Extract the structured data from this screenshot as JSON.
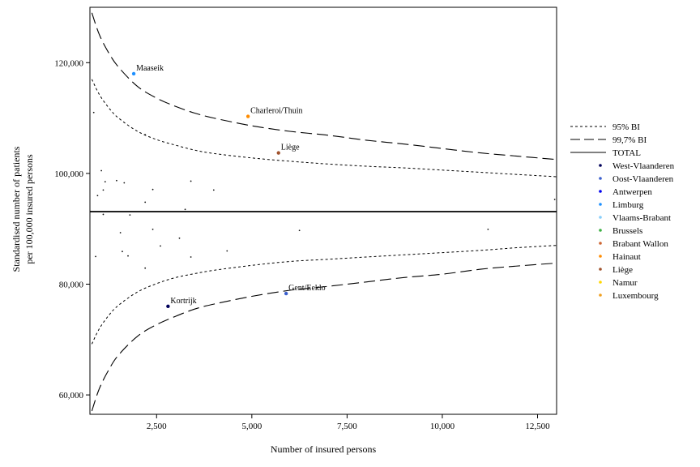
{
  "chart_data": {
    "type": "scatter",
    "xlabel": "Number of insured persons",
    "ylabel_lines": [
      "Standardised number of patients",
      "per 100,000 insured persons"
    ],
    "xlim": [
      750,
      13000
    ],
    "ylim": [
      56500,
      130000
    ],
    "xticks": [
      2500,
      5000,
      7500,
      10000,
      12500
    ],
    "xtick_labels": [
      "2,500",
      "5,000",
      "7,500",
      "10,000",
      "12,500"
    ],
    "yticks": [
      60000,
      80000,
      100000,
      120000
    ],
    "ytick_labels": [
      "60,000",
      "80,000",
      "100,000",
      "120,000"
    ],
    "total": 93100,
    "limits": {
      "x": [
        800,
        1000,
        1250,
        1500,
        2000,
        2500,
        3000,
        3500,
        4000,
        5000,
        6000,
        7000,
        8000,
        9000,
        10000,
        11000,
        12000,
        13000
      ],
      "upper_95": [
        117000,
        114200,
        111800,
        110000,
        107600,
        106100,
        105100,
        104200,
        103600,
        102800,
        102200,
        101700,
        101300,
        101000,
        100600,
        100200,
        99800,
        99400
      ],
      "lower_95": [
        69200,
        72000,
        74400,
        76200,
        78600,
        80100,
        81200,
        81900,
        82500,
        83400,
        84100,
        84500,
        84900,
        85300,
        85700,
        86100,
        86600,
        87000
      ],
      "upper_997": [
        129000,
        125000,
        121700,
        119200,
        115700,
        113600,
        112100,
        110900,
        110000,
        108600,
        107600,
        106900,
        106000,
        105300,
        104500,
        103700,
        103100,
        102500
      ],
      "lower_997": [
        57100,
        61200,
        64600,
        67200,
        70600,
        72700,
        74200,
        75500,
        76400,
        77800,
        78900,
        79600,
        80400,
        81200,
        81800,
        82700,
        83300,
        83800
      ]
    },
    "legend_lines": [
      {
        "label": "95% BI",
        "style": "dotted"
      },
      {
        "label": "99,7% BI",
        "style": "dashed"
      },
      {
        "label": "TOTAL",
        "style": "solid"
      }
    ],
    "legend_placement": "right",
    "provinces": [
      {
        "label": "West-Vlaanderen",
        "color": "#00005a"
      },
      {
        "label": "Oost-Vlaanderen",
        "color": "#3a5fcd"
      },
      {
        "label": "Antwerpen",
        "color": "#0000ee"
      },
      {
        "label": "Limburg",
        "color": "#1e90ff"
      },
      {
        "label": "Vlaams-Brabant",
        "color": "#87cefa"
      },
      {
        "label": "Brussels",
        "color": "#3cb043"
      },
      {
        "label": "Brabant Wallon",
        "color": "#cd6532"
      },
      {
        "label": "Hainaut",
        "color": "#ff8c00"
      },
      {
        "label": "Liège",
        "color": "#a0522d"
      },
      {
        "label": "Namur",
        "color": "#ffd700"
      },
      {
        "label": "Luxembourg",
        "color": "#f0a020"
      }
    ],
    "highlighted": [
      {
        "x": 1900,
        "y": 118000,
        "label": "Maaseik",
        "province": "Limburg",
        "color": "#1e90ff"
      },
      {
        "x": 4900,
        "y": 110300,
        "label": "Charleroi/Thuin",
        "province": "Hainaut",
        "color": "#ff8c00"
      },
      {
        "x": 5700,
        "y": 103700,
        "label": "Liège",
        "province": "Liège",
        "color": "#a0522d"
      },
      {
        "x": 5900,
        "y": 78300,
        "label": "Gent/Eeklo",
        "province": "Oost-Vlaanderen",
        "color": "#3a5fcd"
      },
      {
        "x": 2800,
        "y": 76000,
        "label": "Kortrijk",
        "province": "West-Vlaanderen",
        "color": "#00005a"
      }
    ],
    "points": [
      {
        "x": 850,
        "y": 111000
      },
      {
        "x": 950,
        "y": 96000
      },
      {
        "x": 1050,
        "y": 100500
      },
      {
        "x": 1100,
        "y": 97000
      },
      {
        "x": 1150,
        "y": 98500
      },
      {
        "x": 1450,
        "y": 98700
      },
      {
        "x": 1650,
        "y": 98300
      },
      {
        "x": 2200,
        "y": 107000
      },
      {
        "x": 2200,
        "y": 94800
      },
      {
        "x": 2400,
        "y": 97100
      },
      {
        "x": 3250,
        "y": 93500
      },
      {
        "x": 3400,
        "y": 98600
      },
      {
        "x": 4000,
        "y": 97000
      },
      {
        "x": 12950,
        "y": 95300
      },
      {
        "x": 1100,
        "y": 92600
      },
      {
        "x": 1800,
        "y": 92500
      },
      {
        "x": 1550,
        "y": 89300
      },
      {
        "x": 2400,
        "y": 89900
      },
      {
        "x": 6250,
        "y": 89700
      },
      {
        "x": 11200,
        "y": 89900
      },
      {
        "x": 3100,
        "y": 88300
      },
      {
        "x": 2600,
        "y": 86900
      },
      {
        "x": 4350,
        "y": 86000
      },
      {
        "x": 1600,
        "y": 85900
      },
      {
        "x": 1750,
        "y": 85100
      },
      {
        "x": 900,
        "y": 85000
      },
      {
        "x": 3400,
        "y": 84900
      },
      {
        "x": 2200,
        "y": 82900
      }
    ]
  }
}
